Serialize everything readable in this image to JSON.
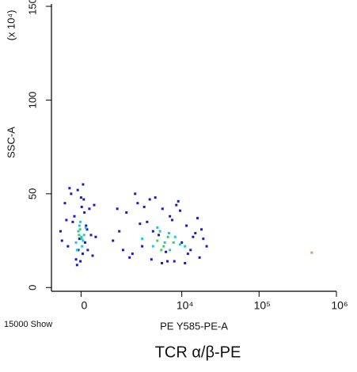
{
  "chart_data": {
    "type": "scatter",
    "title": "TCR α/β-PE",
    "x_axis_label": "PE Y585-PE-A",
    "y_axis_label": "SSC-A",
    "y_axis_multiplier": "(x 10⁴)",
    "event_count_label": "15000 Show",
    "xscale": "arcsinh",
    "xlim": [
      -1000,
      1000000
    ],
    "xticks": [
      0,
      {
        "value": 10000,
        "label": "10⁴"
      },
      {
        "value": 100000,
        "label": "10⁵"
      },
      {
        "value": 1000000,
        "label": "10⁶"
      }
    ],
    "ylim": [
      -2,
      150
    ],
    "yticks": [
      0,
      50,
      100,
      150
    ],
    "series": [
      {
        "color": "#1a1ac8",
        "x": [
          -650,
          -500,
          -400,
          -300,
          -200,
          -150,
          -100,
          -50,
          0,
          50,
          100,
          150,
          200,
          300,
          400,
          -600,
          -350,
          -250,
          -120,
          60,
          120,
          250,
          350,
          -450,
          -20,
          80,
          180,
          -80,
          20,
          450,
          1100,
          1400,
          1800,
          2200,
          2600,
          3000,
          3500,
          4000,
          4500,
          5000,
          5600,
          6200,
          7000,
          8000,
          9000,
          10000,
          11500,
          13000,
          15000,
          17000,
          19000,
          21000,
          1300,
          2000,
          2800,
          3800,
          5500,
          8500,
          12000,
          16000,
          2400,
          4200,
          6500,
          9500,
          14000,
          1600,
          3200,
          7500,
          11000,
          18000
        ],
        "values": [
          30,
          45,
          22,
          50,
          38,
          15,
          52,
          26,
          48,
          18,
          40,
          33,
          20,
          28,
          44,
          25,
          53,
          35,
          12,
          55,
          24,
          42,
          17,
          36,
          14,
          47,
          31,
          20,
          43,
          27,
          25,
          30,
          40,
          18,
          45,
          22,
          35,
          15,
          48,
          28,
          42,
          19,
          38,
          14,
          46,
          24,
          33,
          20,
          29,
          16,
          26,
          22,
          42,
          16,
          34,
          47,
          13,
          44,
          18,
          37,
          50,
          30,
          14,
          41,
          27,
          20,
          43,
          36,
          13,
          31
        ]
      },
      {
        "color": "#22c4e4",
        "x": [
          -150,
          -80,
          -20,
          30,
          90,
          140,
          -120,
          10,
          60,
          -50,
          3000,
          4200,
          5200,
          6000,
          7000,
          8200,
          9500,
          4800,
          6800,
          11000
        ],
        "values": [
          24,
          30,
          35,
          22,
          28,
          32,
          20,
          27,
          25,
          33,
          26,
          22,
          30,
          24,
          20,
          27,
          23,
          32,
          29,
          22
        ]
      },
      {
        "color": "#3ccf5c",
        "x": [
          -60,
          20,
          -30,
          4800,
          5800,
          6600,
          7800,
          5400
        ],
        "values": [
          28,
          26,
          31,
          25,
          22,
          27,
          24,
          20
        ]
      },
      {
        "color": "#d8a070",
        "x": [
          480000
        ],
        "values": [
          18.6
        ]
      }
    ]
  }
}
